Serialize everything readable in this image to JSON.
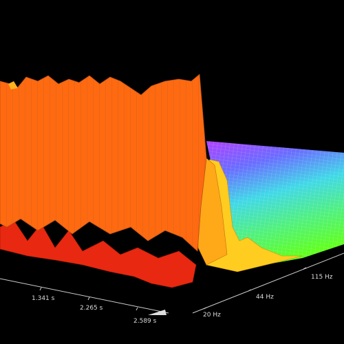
{
  "time_axis_labels": [
    "1.341 s",
    "2.265 s",
    "2.589 s"
  ],
  "frequency_axis_labels": [
    "20 Hz",
    "44 Hz",
    "115 Hz"
  ]
}
